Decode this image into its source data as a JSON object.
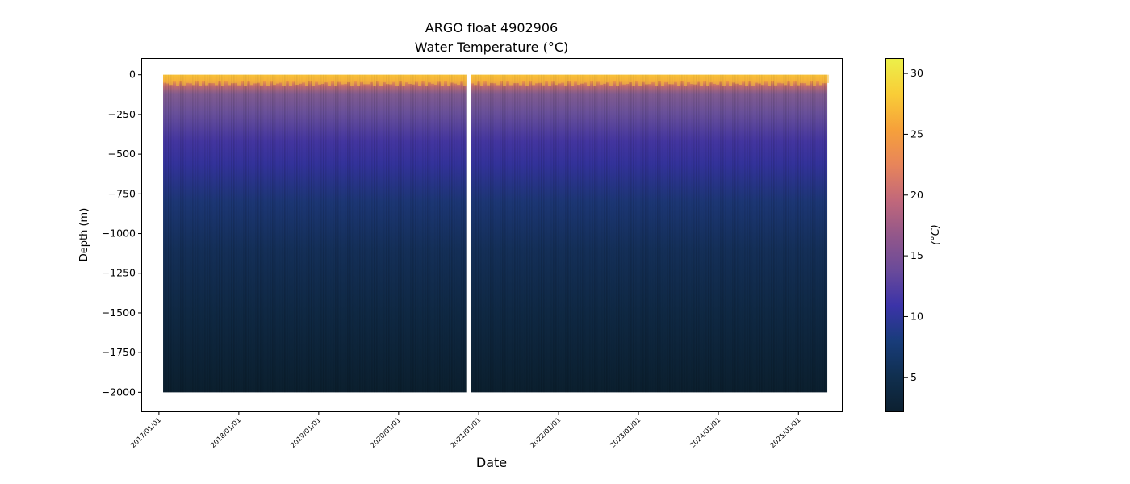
{
  "chart_data": {
    "type": "heatmap",
    "title": "ARGO float 4902906",
    "subtitle": "Water Temperature (°C)",
    "xlabel": "Date",
    "ylabel": "Depth (m)",
    "colorbar_label": "(°C)",
    "x_range": [
      "2016-10-16",
      "2025-07-18"
    ],
    "y_range": [
      -2120,
      100
    ],
    "y_ticks": [
      0,
      -250,
      -500,
      -750,
      -1000,
      -1250,
      -1500,
      -1750,
      -2000
    ],
    "x_ticks": [
      "2017/01/01",
      "2018/01/01",
      "2019/01/01",
      "2020/01/01",
      "2021/01/01",
      "2022/01/01",
      "2023/01/01",
      "2024/01/01",
      "2025/01/01"
    ],
    "colorbar_range": [
      2.2,
      31.2
    ],
    "colorbar_ticks": [
      5,
      10,
      15,
      20,
      25,
      30
    ],
    "colormap": [
      "#0c2030",
      "#102f4f",
      "#183c7a",
      "#3b33a8",
      "#6a4a9a",
      "#93578a",
      "#c2687a",
      "#e8855a",
      "#f6a13a",
      "#f9cd37",
      "#ecf04a"
    ],
    "data_coverage": [
      {
        "start": "2017-01-20",
        "end": "2020-11-05",
        "max_depth": -2000
      },
      {
        "start": "2020-11-25",
        "end": "2025-05-10",
        "max_depth": -2000
      }
    ],
    "representative_profile": [
      {
        "depth": 0,
        "temp": 28
      },
      {
        "depth": -60,
        "temp": 25
      },
      {
        "depth": -150,
        "temp": 15
      },
      {
        "depth": -300,
        "temp": 12
      },
      {
        "depth": -500,
        "temp": 8
      },
      {
        "depth": -750,
        "temp": 6
      },
      {
        "depth": -1000,
        "temp": 5
      },
      {
        "depth": -1500,
        "temp": 3.5
      },
      {
        "depth": -2000,
        "temp": 2.5
      }
    ],
    "grid": false
  }
}
